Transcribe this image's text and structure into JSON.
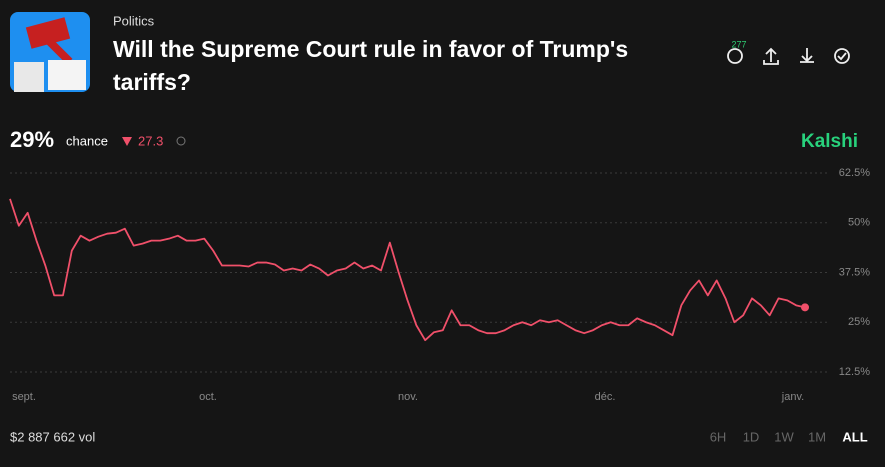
{
  "header": {
    "category": "Politics",
    "title_line1": "Will the Supreme Court rule in favor of Trump's",
    "title_line2": "tariffs?",
    "comments": "277"
  },
  "summary": {
    "chance": "29%",
    "chance_label": "chance",
    "change": "27.3",
    "brand": "Kalshi"
  },
  "footer": {
    "volume": "$2 887 662 vol",
    "ranges": [
      "6H",
      "1D",
      "1W",
      "1M",
      "ALL"
    ]
  },
  "chart_data": {
    "type": "line",
    "x_labels": [
      "sept.",
      "oct.",
      "nov.",
      "déc.",
      "janv."
    ],
    "series": [
      {
        "name": "Yes",
        "color": "#f0506a",
        "values": [
          56,
          49.25,
          52.5,
          45.5,
          39.25,
          31.75,
          31.75,
          43,
          46.75,
          45.5,
          46.5,
          47.25,
          47.5,
          48.5,
          44.25,
          44.75,
          45.5,
          45.5,
          46,
          46.75,
          45.5,
          45.5,
          46,
          43,
          39.25,
          39.25,
          39.25,
          39,
          40,
          40,
          39.5,
          38,
          38.5,
          38,
          39.5,
          38.5,
          36.75,
          38,
          38.5,
          40,
          38.5,
          39.25,
          38,
          45,
          37.5,
          30.5,
          24.25,
          20.5,
          22.5,
          23,
          28,
          24.25,
          24.25,
          23,
          22.25,
          22.25,
          23,
          24.25,
          25,
          24.25,
          25.5,
          25,
          25.5,
          24.25,
          23,
          22.25,
          23,
          24.25,
          25,
          24.25,
          24.25,
          26,
          25,
          24.25,
          23,
          21.75,
          29.25,
          33,
          35.5,
          31.75,
          35.5,
          31,
          25,
          26.75,
          31,
          29.25,
          26.75,
          31,
          30.5,
          29.25,
          28.75
        ]
      }
    ],
    "ylim": [
      12.5,
      62.5
    ],
    "yticks": [
      {
        "value": 12.5,
        "label": "12.5%"
      },
      {
        "value": 25,
        "label": "25%"
      },
      {
        "value": 37.5,
        "label": "37.5%"
      },
      {
        "value": 50,
        "label": "50%"
      },
      {
        "value": 62.5,
        "label": "62.5%"
      }
    ],
    "grid": true
  }
}
